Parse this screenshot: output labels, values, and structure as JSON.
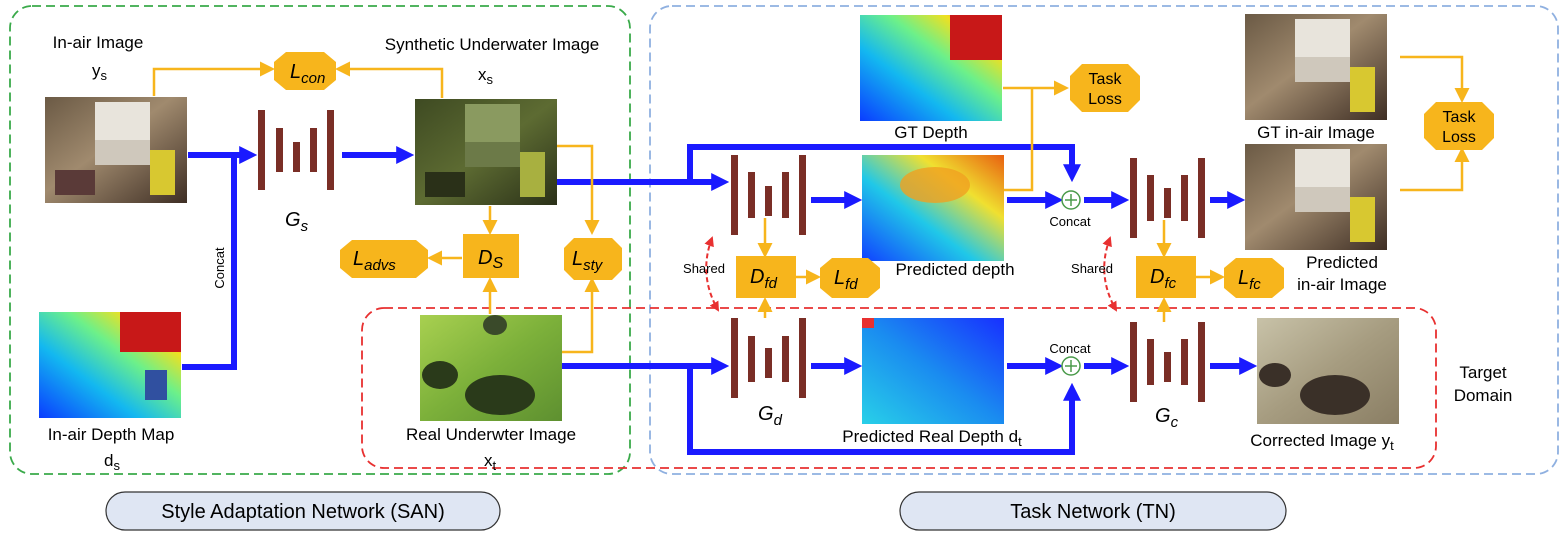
{
  "colors": {
    "san_border": "#3aaa4a",
    "tn_border": "#8fb0e0",
    "target_border": "#e83030",
    "blue_arrow": "#1a1aff",
    "orange": "#f7b51c",
    "generator": "#7a2e26",
    "tab_fill": "#dfe6f3"
  },
  "labels": {
    "in_air_image_line1": "In-air Image",
    "in_air_image_line2": "y",
    "in_air_image_sub": "s",
    "synthetic_line1": "Synthetic Underwater Image",
    "synthetic_line2": "x",
    "synthetic_sub": "s",
    "depth_map_line1": "In-air Depth Map",
    "depth_map_line2": "d",
    "depth_map_sub": "s",
    "real_uw_line1": "Real Underwter Image",
    "real_uw_line2": "x",
    "real_uw_sub": "t",
    "concat_vertical": "Concat",
    "concat_top": "Concat",
    "concat_bottom": "Concat",
    "shared_left": "Shared",
    "shared_right": "Shared",
    "gt_depth": "GT Depth",
    "predicted_depth": "Predicted depth",
    "predicted_real_depth": "Predicted Real Depth d",
    "predicted_real_depth_sub": "t",
    "gt_in_air": "GT in-air Image",
    "predicted_in_air_line1": "Predicted",
    "predicted_in_air_line2": "in-air Image",
    "corrected_image": "Corrected Image y",
    "corrected_image_sub": "t",
    "target_domain_line1": "Target",
    "target_domain_line2": "Domain"
  },
  "generators": {
    "gs": {
      "main": "G",
      "sub": "s"
    },
    "gd": {
      "main": "G",
      "sub": "d"
    },
    "gc": {
      "main": "G",
      "sub": "c"
    }
  },
  "losses": {
    "lcon": {
      "main": "L",
      "sub": "con"
    },
    "ladvs": {
      "main": "L",
      "sub": "advs"
    },
    "lsty": {
      "main": "L",
      "sub": "sty"
    },
    "lfd": {
      "main": "L",
      "sub": "fd"
    },
    "lfc": {
      "main": "L",
      "sub": "fc"
    },
    "task1_line1": "Task",
    "task1_line2": "Loss",
    "task2_line1": "Task",
    "task2_line2": "Loss"
  },
  "discriminators": {
    "ds": {
      "main": "D",
      "sub": "S"
    },
    "dfd": {
      "main": "D",
      "sub": "fd"
    },
    "dfc": {
      "main": "D",
      "sub": "fc"
    }
  },
  "tabs": {
    "san": "Style Adaptation Network (SAN)",
    "tn": "Task Network (TN)"
  }
}
